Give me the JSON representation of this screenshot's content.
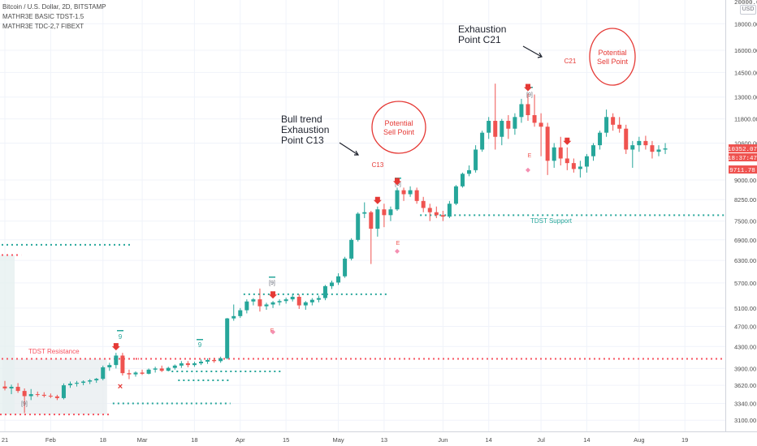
{
  "header": {
    "symbol_line": "Bitcoin / U.S. Dollar, 2D, BITSTAMP",
    "indicator_1": "MATHR3E BASIC TDST-1.5",
    "indicator_2": "MATHR3E TDC-2,7 FIBEXT",
    "currency_button": "USD"
  },
  "colors": {
    "bull": "#26a69a",
    "bear": "#ef5350",
    "resistance": "#f7525f",
    "support": "#26a69a",
    "annotation_red": "#e53935",
    "axis_text": "#4a4a4a",
    "grid": "#f0f3fa"
  },
  "annotations": {
    "bull_trend_l1": "Bull trend",
    "bull_trend_l2": "Exhaustion",
    "bull_trend_l3": "Point C13",
    "exhaustion_l1": "Exhaustion",
    "exhaustion_l2": "Point C21",
    "potential_l1": "Potential",
    "potential_l2": "Sell Point",
    "c13": "C13",
    "c21": "C21",
    "tdst_resistance": "TDST Resistance",
    "tdst_support": "TDST Support",
    "count_9": "9",
    "count_9_boxed": "[9]",
    "e_label": "E",
    "x_label": "×"
  },
  "price_badges": {
    "last_price": "10352.07",
    "countdown": "18:37:47",
    "other_price": "9711.78",
    "top_partial": "20000.00"
  },
  "chart_data": {
    "type": "candlestick",
    "title": "Bitcoin / U.S. Dollar, 2D, BITSTAMP",
    "y_scale": "log",
    "ylim": [
      2950,
      20000
    ],
    "y_ticks": [
      "18000.00",
      "16000.00",
      "14500.00",
      "13000.00",
      "11800.00",
      "10600.00",
      "9000.00",
      "8250.00",
      "7500.00",
      "6900.00",
      "6300.00",
      "5700.00",
      "5100.00",
      "4700.00",
      "4300.00",
      "3900.00",
      "3620.00",
      "3340.00",
      "3100.00"
    ],
    "x_ticks": [
      "21",
      "Feb",
      "18",
      "Mar",
      "18",
      "Apr",
      "15",
      "May",
      "13",
      "Jun",
      "14",
      "Jul",
      "14",
      "Aug",
      "19"
    ],
    "x_tick_candle_index": [
      0,
      7,
      15,
      21,
      29,
      36,
      43,
      51,
      58,
      67,
      74,
      82,
      89,
      97,
      104
    ],
    "candles": [
      {
        "o": 3600,
        "h": 3690,
        "l": 3540,
        "c": 3570
      },
      {
        "o": 3570,
        "h": 3630,
        "l": 3480,
        "c": 3595
      },
      {
        "o": 3595,
        "h": 3655,
        "l": 3500,
        "c": 3530
      },
      {
        "o": 3530,
        "h": 3570,
        "l": 3200,
        "c": 3450
      },
      {
        "o": 3450,
        "h": 3560,
        "l": 3390,
        "c": 3480
      },
      {
        "o": 3480,
        "h": 3520,
        "l": 3440,
        "c": 3470
      },
      {
        "o": 3470,
        "h": 3510,
        "l": 3430,
        "c": 3455
      },
      {
        "o": 3455,
        "h": 3490,
        "l": 3420,
        "c": 3445
      },
      {
        "o": 3445,
        "h": 3470,
        "l": 3390,
        "c": 3420
      },
      {
        "o": 3420,
        "h": 3650,
        "l": 3400,
        "c": 3620
      },
      {
        "o": 3620,
        "h": 3680,
        "l": 3580,
        "c": 3645
      },
      {
        "o": 3645,
        "h": 3690,
        "l": 3600,
        "c": 3660
      },
      {
        "o": 3660,
        "h": 3700,
        "l": 3620,
        "c": 3680
      },
      {
        "o": 3680,
        "h": 3720,
        "l": 3640,
        "c": 3700
      },
      {
        "o": 3700,
        "h": 3740,
        "l": 3660,
        "c": 3725
      },
      {
        "o": 3725,
        "h": 3950,
        "l": 3700,
        "c": 3920
      },
      {
        "o": 3920,
        "h": 4000,
        "l": 3860,
        "c": 3960
      },
      {
        "o": 3960,
        "h": 4180,
        "l": 3900,
        "c": 4130
      },
      {
        "o": 4130,
        "h": 4180,
        "l": 3780,
        "c": 3820
      },
      {
        "o": 3820,
        "h": 3880,
        "l": 3720,
        "c": 3800
      },
      {
        "o": 3800,
        "h": 3850,
        "l": 3760,
        "c": 3830
      },
      {
        "o": 3830,
        "h": 3880,
        "l": 3790,
        "c": 3810
      },
      {
        "o": 3810,
        "h": 3900,
        "l": 3800,
        "c": 3880
      },
      {
        "o": 3880,
        "h": 3930,
        "l": 3830,
        "c": 3900
      },
      {
        "o": 3900,
        "h": 3950,
        "l": 3840,
        "c": 3860
      },
      {
        "o": 3860,
        "h": 3930,
        "l": 3850,
        "c": 3910
      },
      {
        "o": 3910,
        "h": 3970,
        "l": 3880,
        "c": 3950
      },
      {
        "o": 3950,
        "h": 4030,
        "l": 3910,
        "c": 3990
      },
      {
        "o": 3990,
        "h": 4030,
        "l": 3920,
        "c": 3960
      },
      {
        "o": 3960,
        "h": 4020,
        "l": 3930,
        "c": 3990
      },
      {
        "o": 3990,
        "h": 4060,
        "l": 3960,
        "c": 4020
      },
      {
        "o": 4020,
        "h": 4080,
        "l": 3980,
        "c": 4050
      },
      {
        "o": 4050,
        "h": 4090,
        "l": 4000,
        "c": 4030
      },
      {
        "o": 4030,
        "h": 4110,
        "l": 4000,
        "c": 4080
      },
      {
        "o": 4080,
        "h": 4880,
        "l": 4060,
        "c": 4870
      },
      {
        "o": 4870,
        "h": 5180,
        "l": 4820,
        "c": 4920
      },
      {
        "o": 4920,
        "h": 5100,
        "l": 4880,
        "c": 5050
      },
      {
        "o": 5050,
        "h": 5300,
        "l": 4980,
        "c": 5250
      },
      {
        "o": 5250,
        "h": 5330,
        "l": 5160,
        "c": 5300
      },
      {
        "o": 5300,
        "h": 5560,
        "l": 5020,
        "c": 5140
      },
      {
        "o": 5140,
        "h": 5220,
        "l": 5060,
        "c": 5180
      },
      {
        "o": 5180,
        "h": 5260,
        "l": 5100,
        "c": 5230
      },
      {
        "o": 5230,
        "h": 5300,
        "l": 5160,
        "c": 5260
      },
      {
        "o": 5260,
        "h": 5340,
        "l": 5200,
        "c": 5300
      },
      {
        "o": 5300,
        "h": 5430,
        "l": 5250,
        "c": 5360
      },
      {
        "o": 5360,
        "h": 5420,
        "l": 5080,
        "c": 5160
      },
      {
        "o": 5160,
        "h": 5260,
        "l": 5060,
        "c": 5230
      },
      {
        "o": 5230,
        "h": 5330,
        "l": 5160,
        "c": 5290
      },
      {
        "o": 5290,
        "h": 5390,
        "l": 5230,
        "c": 5330
      },
      {
        "o": 5330,
        "h": 5650,
        "l": 5280,
        "c": 5620
      },
      {
        "o": 5620,
        "h": 5760,
        "l": 5550,
        "c": 5710
      },
      {
        "o": 5710,
        "h": 5950,
        "l": 5650,
        "c": 5870
      },
      {
        "o": 5870,
        "h": 6400,
        "l": 5830,
        "c": 6350
      },
      {
        "o": 6350,
        "h": 6950,
        "l": 6300,
        "c": 6900
      },
      {
        "o": 6900,
        "h": 7800,
        "l": 6850,
        "c": 7750
      },
      {
        "o": 7750,
        "h": 8150,
        "l": 7600,
        "c": 7800
      },
      {
        "o": 7800,
        "h": 7850,
        "l": 6200,
        "c": 7250
      },
      {
        "o": 7250,
        "h": 8000,
        "l": 7000,
        "c": 7900
      },
      {
        "o": 7900,
        "h": 8100,
        "l": 7300,
        "c": 7700
      },
      {
        "o": 7700,
        "h": 8000,
        "l": 7500,
        "c": 7900
      },
      {
        "o": 7900,
        "h": 8700,
        "l": 7850,
        "c": 8600
      },
      {
        "o": 8600,
        "h": 8700,
        "l": 8200,
        "c": 8450
      },
      {
        "o": 8450,
        "h": 8750,
        "l": 8350,
        "c": 8600
      },
      {
        "o": 8600,
        "h": 8700,
        "l": 8100,
        "c": 8200
      },
      {
        "o": 8200,
        "h": 8350,
        "l": 7800,
        "c": 7950
      },
      {
        "o": 7950,
        "h": 8100,
        "l": 7500,
        "c": 7800
      },
      {
        "o": 7800,
        "h": 8000,
        "l": 7600,
        "c": 7700
      },
      {
        "o": 7700,
        "h": 7850,
        "l": 7500,
        "c": 7650
      },
      {
        "o": 7650,
        "h": 8200,
        "l": 7600,
        "c": 8100
      },
      {
        "o": 8100,
        "h": 8800,
        "l": 8050,
        "c": 8750
      },
      {
        "o": 8750,
        "h": 9300,
        "l": 8700,
        "c": 9250
      },
      {
        "o": 9250,
        "h": 9600,
        "l": 9150,
        "c": 9400
      },
      {
        "o": 9400,
        "h": 10500,
        "l": 9300,
        "c": 10300
      },
      {
        "o": 10300,
        "h": 11200,
        "l": 10200,
        "c": 11100
      },
      {
        "o": 11100,
        "h": 11900,
        "l": 10800,
        "c": 11700
      },
      {
        "o": 11700,
        "h": 13800,
        "l": 10300,
        "c": 10900
      },
      {
        "o": 10900,
        "h": 11800,
        "l": 10500,
        "c": 11700
      },
      {
        "o": 11700,
        "h": 12000,
        "l": 10800,
        "c": 11300
      },
      {
        "o": 11300,
        "h": 12100,
        "l": 11000,
        "c": 11900
      },
      {
        "o": 11900,
        "h": 12900,
        "l": 11600,
        "c": 12600
      },
      {
        "o": 12600,
        "h": 13200,
        "l": 11700,
        "c": 12000
      },
      {
        "o": 12000,
        "h": 13150,
        "l": 11400,
        "c": 11600
      },
      {
        "o": 11600,
        "h": 12100,
        "l": 10000,
        "c": 11400
      },
      {
        "o": 11400,
        "h": 11600,
        "l": 9200,
        "c": 9800
      },
      {
        "o": 9800,
        "h": 10600,
        "l": 9500,
        "c": 10400
      },
      {
        "o": 10400,
        "h": 10900,
        "l": 9600,
        "c": 9900
      },
      {
        "o": 9900,
        "h": 10400,
        "l": 9400,
        "c": 9700
      },
      {
        "o": 9700,
        "h": 9900,
        "l": 9300,
        "c": 9450
      },
      {
        "o": 9450,
        "h": 9800,
        "l": 9100,
        "c": 9550
      },
      {
        "o": 9550,
        "h": 10100,
        "l": 9300,
        "c": 10000
      },
      {
        "o": 10000,
        "h": 10600,
        "l": 9800,
        "c": 10500
      },
      {
        "o": 10500,
        "h": 11200,
        "l": 10300,
        "c": 11100
      },
      {
        "o": 11100,
        "h": 12300,
        "l": 10900,
        "c": 11900
      },
      {
        "o": 11900,
        "h": 12100,
        "l": 11200,
        "c": 11500
      },
      {
        "o": 11500,
        "h": 11900,
        "l": 11100,
        "c": 11300
      },
      {
        "o": 11300,
        "h": 11500,
        "l": 10100,
        "c": 10300
      },
      {
        "o": 10300,
        "h": 10700,
        "l": 9500,
        "c": 10500
      },
      {
        "o": 10500,
        "h": 10900,
        "l": 10200,
        "c": 10700
      },
      {
        "o": 10700,
        "h": 10950,
        "l": 10300,
        "c": 10500
      },
      {
        "o": 10500,
        "h": 10700,
        "l": 9900,
        "c": 10200
      },
      {
        "o": 10200,
        "h": 10500,
        "l": 10000,
        "c": 10300
      },
      {
        "o": 10300,
        "h": 10600,
        "l": 10100,
        "c": 10352
      }
    ],
    "tdst_resistance_level": 4070,
    "tdst_support_level": 7700,
    "resistance_levels": [
      {
        "from": 0,
        "to": 20,
        "price": 4070,
        "label": "TDST Resistance"
      },
      {
        "from": 0,
        "to": 2,
        "price": 6450
      }
    ],
    "support_levels": [
      {
        "from": 64,
        "to": 104,
        "price": 7700,
        "label": "TDST Support"
      },
      {
        "from": 0,
        "to": 19,
        "price": 6750
      },
      {
        "from": 37,
        "to": 58,
        "price": 5420
      },
      {
        "from": 26,
        "to": 42,
        "price": 3850
      },
      {
        "from": 27,
        "to": 34,
        "price": 3700
      },
      {
        "from": 17,
        "to": 34,
        "price": 3340
      }
    ]
  }
}
